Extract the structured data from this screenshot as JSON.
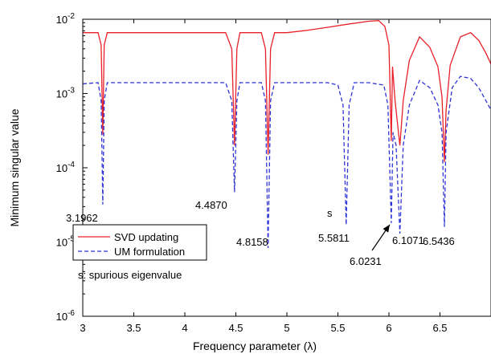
{
  "chart_data": {
    "type": "line",
    "xlabel": "Frequency parameter (λ)",
    "ylabel": "Minimum singular value",
    "xlim": [
      3,
      7
    ],
    "ylim": [
      1e-06,
      0.01
    ],
    "yscale": "log",
    "grid": false,
    "legend_placement": "bottom-left",
    "x_ticks": [
      "3",
      "3.5",
      "4",
      "4.5",
      "5",
      "5.5",
      "6",
      "6.5"
    ],
    "y_ticks": [
      {
        "base": "10",
        "exp": "-6"
      },
      {
        "base": "10",
        "exp": "-5"
      },
      {
        "base": "10",
        "exp": "-4"
      },
      {
        "base": "10",
        "exp": "-3"
      },
      {
        "base": "10",
        "exp": "-2"
      }
    ],
    "series": [
      {
        "name": "SVD updating",
        "color": "#e8202a",
        "style": "solid",
        "x": [
          3.0,
          3.15,
          3.18,
          3.1962,
          3.21,
          3.24,
          3.3,
          3.5,
          4.0,
          4.4,
          4.46,
          4.487,
          4.51,
          4.54,
          4.6,
          4.75,
          4.79,
          4.8158,
          4.84,
          4.88,
          5.0,
          5.2,
          5.4,
          5.6,
          5.8,
          5.9,
          5.96,
          6.0,
          6.0231,
          6.035,
          6.06,
          6.1071,
          6.14,
          6.2,
          6.3,
          6.4,
          6.48,
          6.52,
          6.5436,
          6.56,
          6.6,
          6.7,
          6.8,
          6.88,
          6.95,
          7.0
        ],
        "y": [
          0.0066,
          0.0066,
          0.0045,
          0.00028,
          0.0045,
          0.0066,
          0.0066,
          0.0066,
          0.0066,
          0.0066,
          0.004,
          0.0002,
          0.004,
          0.0066,
          0.0066,
          0.0066,
          0.004,
          0.00015,
          0.004,
          0.0066,
          0.0066,
          0.0071,
          0.0078,
          0.0086,
          0.0094,
          0.0096,
          0.008,
          0.0045,
          0.00023,
          0.0023,
          0.0008,
          0.0002,
          0.0008,
          0.0028,
          0.0058,
          0.0042,
          0.0023,
          0.0009,
          0.00012,
          0.0006,
          0.0024,
          0.0058,
          0.0066,
          0.0052,
          0.0035,
          0.0025
        ]
      },
      {
        "name": "UM formulation",
        "color": "#2f33d6",
        "style": "dashed",
        "x": [
          3.0,
          3.15,
          3.18,
          3.1962,
          3.21,
          3.24,
          3.3,
          3.5,
          4.0,
          4.4,
          4.46,
          4.487,
          4.51,
          4.54,
          4.6,
          4.75,
          4.79,
          4.8158,
          4.84,
          4.88,
          5.0,
          5.2,
          5.4,
          5.5,
          5.55,
          5.5811,
          5.61,
          5.66,
          5.8,
          5.95,
          5.99,
          6.0231,
          6.04,
          6.07,
          6.1071,
          6.14,
          6.2,
          6.3,
          6.4,
          6.48,
          6.52,
          6.5436,
          6.56,
          6.62,
          6.7,
          6.8,
          6.88,
          6.95,
          7.0
        ],
        "y": [
          0.00135,
          0.0014,
          0.0008,
          3.2e-05,
          0.0008,
          0.0014,
          0.0014,
          0.0014,
          0.0014,
          0.0014,
          0.0008,
          4.7e-05,
          0.0008,
          0.0014,
          0.0014,
          0.0014,
          0.0008,
          8.3e-06,
          0.0008,
          0.0014,
          0.0014,
          0.0014,
          0.0014,
          0.0013,
          0.0007,
          1.7e-05,
          0.0007,
          0.0014,
          0.0014,
          0.0013,
          0.0007,
          1.8e-05,
          0.0003,
          0.0002,
          1.3e-05,
          0.0002,
          0.0007,
          0.0015,
          0.0012,
          0.0007,
          0.0003,
          1.6e-05,
          0.0003,
          0.0012,
          0.0017,
          0.0016,
          0.0012,
          0.0008,
          0.0006
        ]
      }
    ],
    "annotations": [
      {
        "text": "3.1962",
        "x": 3.1962
      },
      {
        "text": "4.4870",
        "x": 4.487
      },
      {
        "text": "4.8158",
        "x": 4.8158
      },
      {
        "text": "s",
        "x": 5.5811
      },
      {
        "text": "5.5811",
        "x": 5.5811
      },
      {
        "text": "6.0231",
        "x": 6.0231
      },
      {
        "text": "6.1071",
        "x": 6.1071
      },
      {
        "text": "6.5436",
        "x": 6.5436
      }
    ],
    "legend_note": "s: spurious eigenvalue"
  }
}
